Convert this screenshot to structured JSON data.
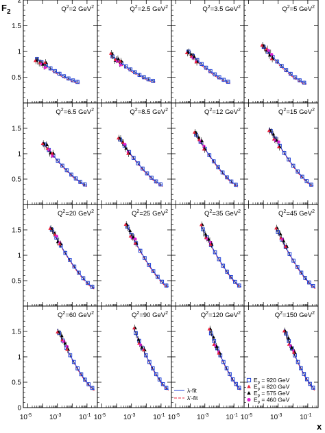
{
  "chart_data": {
    "type": "scatter",
    "ylabel": "F",
    "ylabel_sub": "2",
    "xlabel": "x",
    "xscale": "log",
    "xlim": [
      5e-06,
      0.5
    ],
    "ylim": [
      0,
      2
    ],
    "y_ticks": [
      "0.5",
      "1",
      "1.5"
    ],
    "y_ticks_top_row": [
      "0.5",
      "1",
      "1.5",
      "2"
    ],
    "y_ticks_bottom_row": [
      "0",
      "0.5",
      "1",
      "1.5"
    ],
    "x_ticks": [
      {
        "base": "10",
        "exp": "-5"
      },
      {
        "base": "10",
        "exp": "-3"
      },
      {
        "base": "10",
        "exp": "-1"
      }
    ],
    "q2_unit": "GeV",
    "line_colors": {
      "lambda": "#1f3fd6",
      "lambda_prime": "#e8203a"
    },
    "marker_colors": {
      "920": "#1f3fd6",
      "820": "#e8203a",
      "575": "#000000",
      "460": "#e020d0"
    },
    "legend_fits": [
      {
        "label": "λ-fit",
        "color": "#1f3fd6",
        "dash": false
      },
      {
        "label": "λ'-fit",
        "color": "#e8203a",
        "dash": true
      }
    ],
    "legend_energies": [
      {
        "label": "E",
        "sub": "p",
        "value": " = 920 GeV",
        "marker": "square",
        "color": "#1f3fd6"
      },
      {
        "label": "E",
        "sub": "p",
        "value": " = 820 GeV",
        "marker": "triangle",
        "color": "#e8203a"
      },
      {
        "label": "E",
        "sub": "p",
        "value": " = 575 GeV",
        "marker": "triangle",
        "color": "#000000"
      },
      {
        "label": "E",
        "sub": "p",
        "value": " = 460 GeV",
        "marker": "circle",
        "color": "#e020d0"
      }
    ],
    "panels": [
      {
        "q2": "2",
        "q2_label": "Q",
        "sup": "2",
        "eq": "=2 GeV",
        "xmin": 3.2e-05,
        "xmax": 0.032,
        "ymin": 0.4,
        "ymax": 0.88
      },
      {
        "q2": "2.5",
        "q2_label": "Q",
        "sup": "2",
        "eq": "=2.5 GeV",
        "xmin": 4e-05,
        "xmax": 0.04,
        "ymin": 0.42,
        "ymax": 0.93
      },
      {
        "q2": "3.5",
        "q2_label": "Q",
        "sup": "2",
        "eq": "=3.5 GeV",
        "xmin": 5.6e-05,
        "xmax": 0.056,
        "ymin": 0.4,
        "ymax": 1.03
      },
      {
        "q2": "5",
        "q2_label": "Q",
        "sup": "2",
        "eq": "=5 GeV",
        "xmin": 8e-05,
        "xmax": 0.08,
        "ymin": 0.38,
        "ymax": 1.13
      },
      {
        "q2": "6.5",
        "q2_label": "Q",
        "sup": "2",
        "eq": "=6.5 GeV",
        "xmin": 0.0001,
        "xmax": 0.1,
        "ymin": 0.38,
        "ymax": 1.23
      },
      {
        "q2": "8.5",
        "q2_label": "Q",
        "sup": "2",
        "eq": "=8.5 GeV",
        "xmin": 0.00013,
        "xmax": 0.13,
        "ymin": 0.38,
        "ymax": 1.33
      },
      {
        "q2": "12",
        "q2_label": "Q",
        "sup": "2",
        "eq": "=12 GeV",
        "xmin": 0.00019,
        "xmax": 0.19,
        "ymin": 0.37,
        "ymax": 1.43
      },
      {
        "q2": "15",
        "q2_label": "Q",
        "sup": "2",
        "eq": "=15 GeV",
        "xmin": 0.00024,
        "xmax": 0.24,
        "ymin": 0.37,
        "ymax": 1.51
      },
      {
        "q2": "20",
        "q2_label": "Q",
        "sup": "2",
        "eq": "=20 GeV",
        "xmin": 0.00032,
        "xmax": 0.32,
        "ymin": 0.36,
        "ymax": 1.57
      },
      {
        "q2": "25",
        "q2_label": "Q",
        "sup": "2",
        "eq": "=25 GeV",
        "xmin": 0.0004,
        "xmax": 0.32,
        "ymin": 0.38,
        "ymax": 1.63
      },
      {
        "q2": "35",
        "q2_label": "Q",
        "sup": "2",
        "eq": "=35 GeV",
        "xmin": 0.00056,
        "xmax": 0.32,
        "ymin": 0.38,
        "ymax": 1.58
      },
      {
        "q2": "45",
        "q2_label": "Q",
        "sup": "2",
        "eq": "=45 GeV",
        "xmin": 0.00072,
        "xmax": 0.32,
        "ymin": 0.37,
        "ymax": 1.53
      },
      {
        "q2": "60",
        "q2_label": "Q",
        "sup": "2",
        "eq": "=60 GeV",
        "xmin": 0.001,
        "xmax": 0.32,
        "ymin": 0.36,
        "ymax": 1.55
      },
      {
        "q2": "90",
        "q2_label": "Q",
        "sup": "2",
        "eq": "=90 GeV",
        "xmin": 0.0015,
        "xmax": 0.32,
        "ymin": 0.36,
        "ymax": 1.55
      },
      {
        "q2": "120",
        "q2_label": "Q",
        "sup": "2",
        "eq": "=120 GeV",
        "xmin": 0.002,
        "xmax": 0.32,
        "ymin": 0.36,
        "ymax": 1.55
      },
      {
        "q2": "150",
        "q2_label": "Q",
        "sup": "2",
        "eq": "=150 GeV",
        "xmin": 0.0025,
        "xmax": 0.32,
        "ymin": 0.36,
        "ymax": 1.55
      }
    ]
  }
}
